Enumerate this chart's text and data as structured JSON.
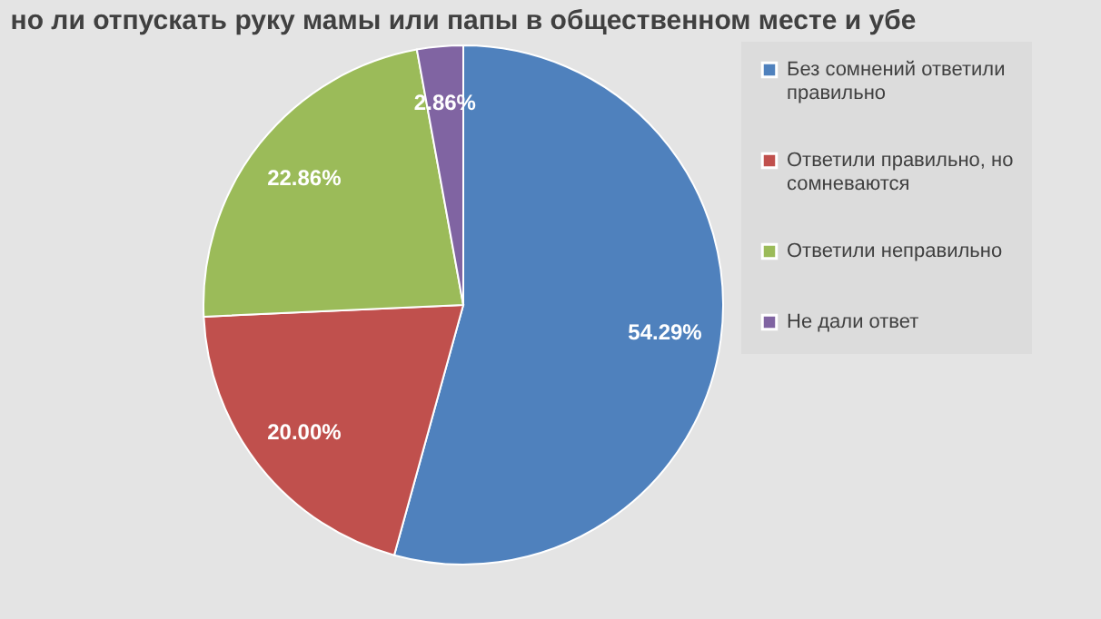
{
  "chart_data": {
    "type": "pie",
    "title": "но ли отпускать руку мамы или папы в общественном месте и убе",
    "categories": [
      "Без сомнений ответили правильно",
      "Ответили правильно, но сомневаются",
      "Ответили неправильно",
      "Не дали ответ"
    ],
    "values": [
      54.29,
      20.0,
      22.86,
      2.86
    ],
    "value_labels": [
      "54.29%",
      "20.00%",
      "22.86%",
      "2.86%"
    ],
    "colors": [
      "#4f81bd",
      "#c0504d",
      "#9bbb59",
      "#8064a2"
    ],
    "legend": "right"
  }
}
